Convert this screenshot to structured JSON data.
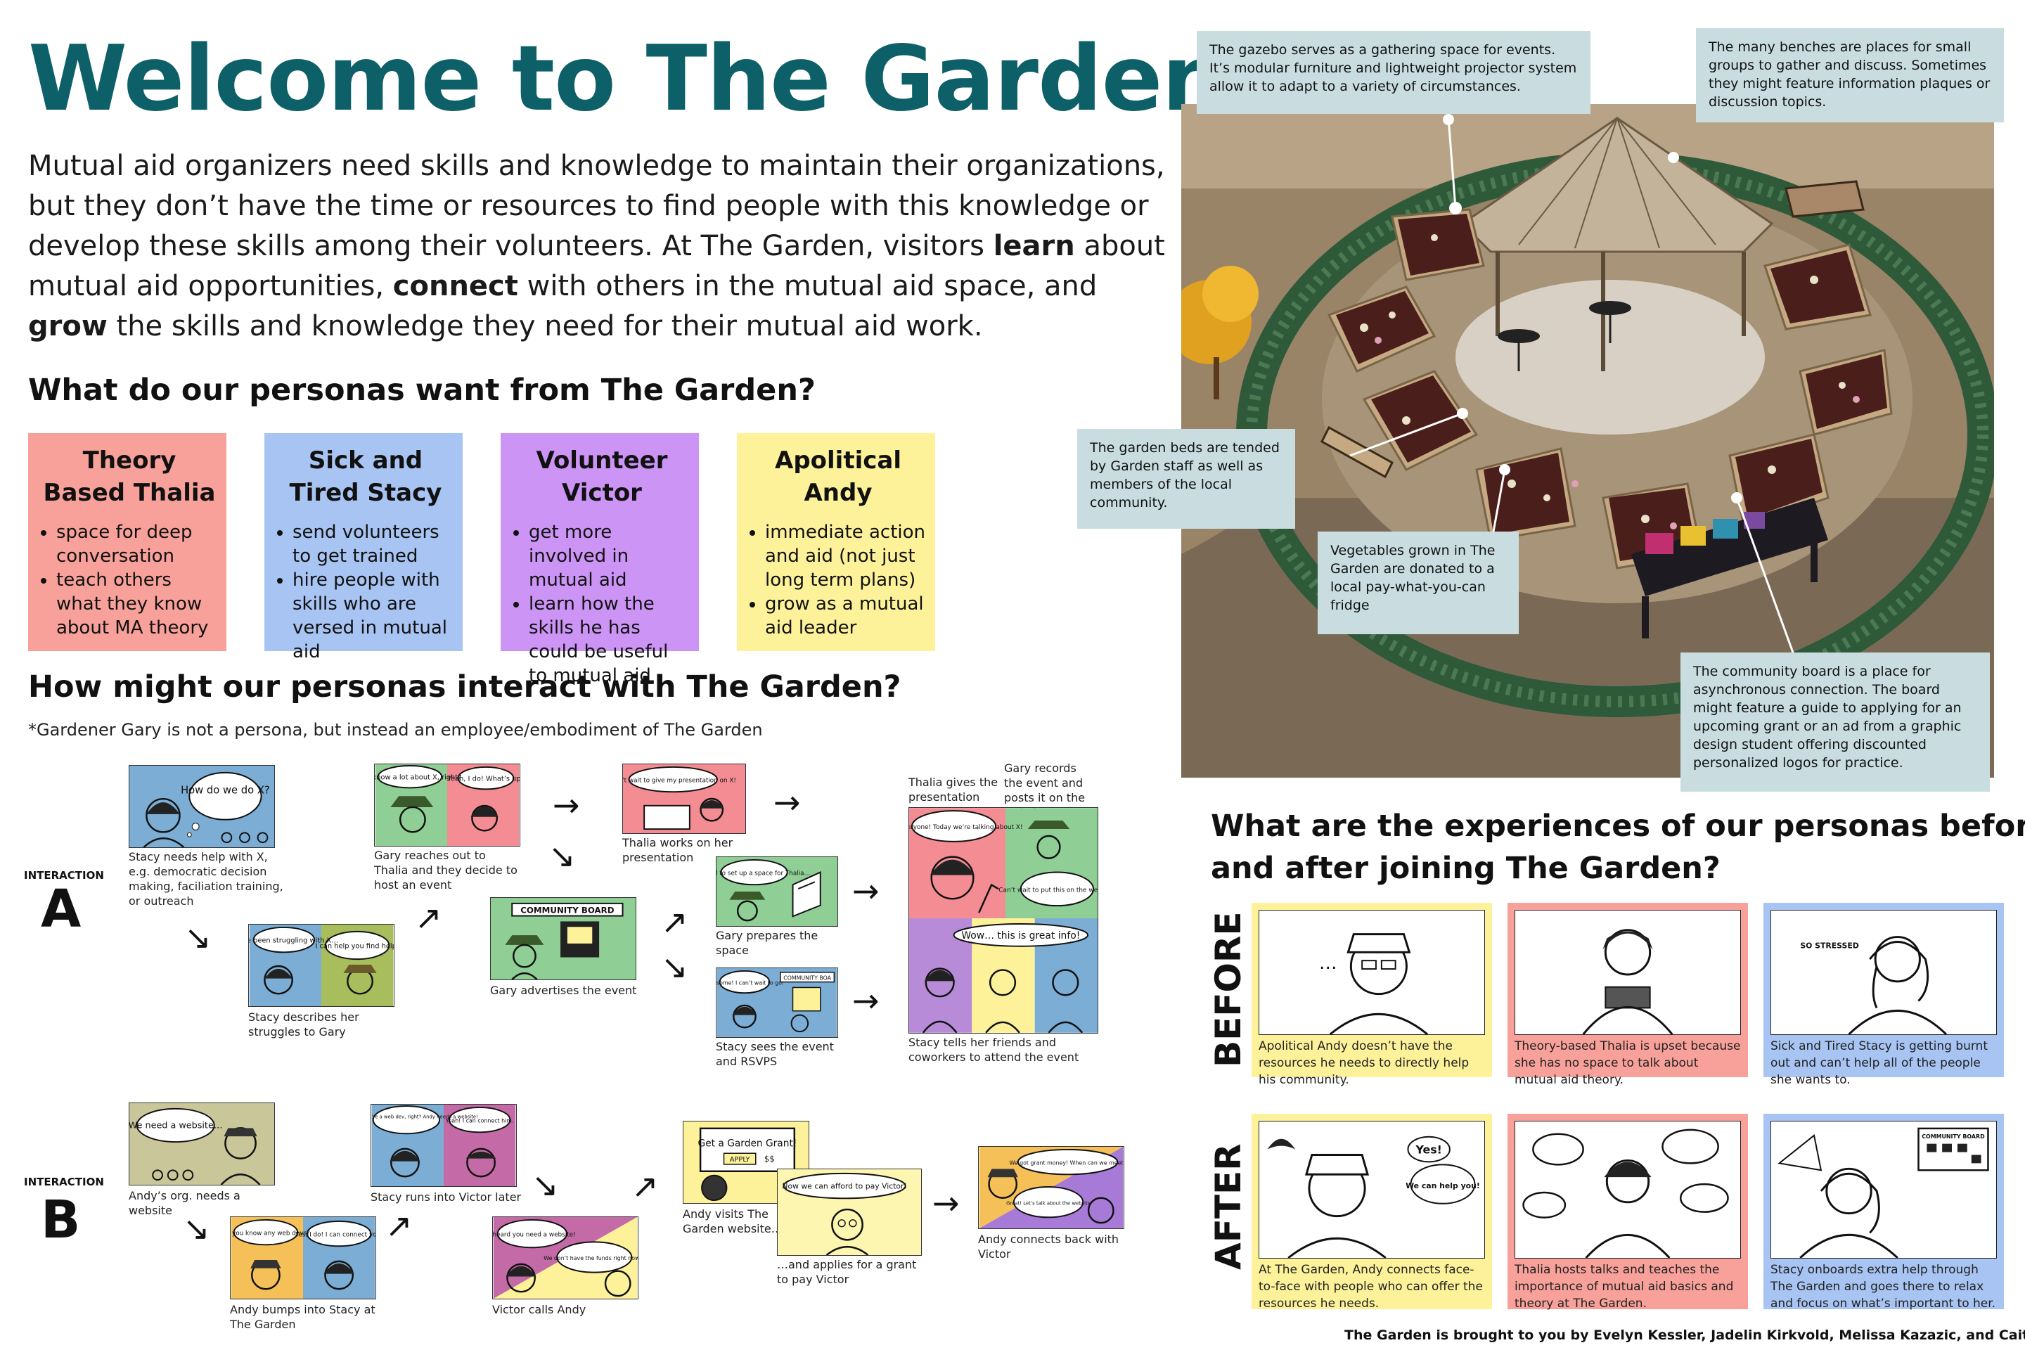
{
  "header": {
    "title": "Welcome to The Garden",
    "intro": {
      "p1": "Mutual aid organizers need skills and knowledge to maintain their organizations, but they don’t have the time or resources to find people with this knowledge or develop these skills among their volunteers. At The Garden, visitors ",
      "learn": "learn",
      "p2": " about mutual aid opportunities, ",
      "connect": "connect",
      "p3": " with others in the mutual aid space, and ",
      "grow": "grow",
      "p4": " the skills and knowledge they need for their mutual aid work."
    }
  },
  "personas_section": {
    "heading": "What do our personas want from The Garden?",
    "personas": [
      {
        "name": "Theory Based Thalia",
        "color": "#f8a19a",
        "points": [
          "space for deep conversation",
          "teach others what they know about MA theory"
        ]
      },
      {
        "name": "Sick and Tired Stacy",
        "color": "#a7c4f2",
        "points": [
          "send volunteers to get trained",
          "hire people with skills who are versed in mutual aid"
        ]
      },
      {
        "name": "Volunteer Victor",
        "color": "#cc94f5",
        "points": [
          "get more involved in mutual aid",
          "learn how the skills he has could be useful to mutual aid"
        ]
      },
      {
        "name": "Apolitical Andy",
        "color": "#fdf29a",
        "points": [
          "immediate action and aid (not just long term plans)",
          "grow as a mutual aid leader"
        ]
      }
    ]
  },
  "interact_section": {
    "heading": "How might our personas interact with The Garden?",
    "note": "*Gardener Gary is not a persona, but instead an employee/embodiment of The Garden",
    "interaction_a": {
      "label": "INTERACTION",
      "letter": "A",
      "captions": {
        "a1": "Stacy needs help with X, e.g. democratic decision making, faciliation training, or outreach",
        "a2": "Stacy describes her struggles to Gary",
        "a3": "Gary reaches out to Thalia and they decide to host an event",
        "a4": "Gary advertises the event",
        "a5": "Thalia works on her presentation",
        "a6": "Gary prepares the space",
        "a7": "Stacy sees the event and RSVPS",
        "a8a": "Thalia gives the presentation",
        "a8b": "Gary records the event and posts it on the website",
        "a9": "Stacy tells her friends and coworkers to attend the event"
      },
      "bubbles": {
        "a1": "How do we do X?",
        "a2l": "We’ve been struggling with X…",
        "a2r": "I can help you find help!",
        "a3l": "You know a lot about X, right?",
        "a3r": "Yeah, I do! What’s up?",
        "a4": "COMMUNITY BOARD",
        "a5": "Can’t wait to give my presentation on X!",
        "a6": "I need to set up a space for Thalia…",
        "a7l": "Awesome! I can’t wait to go!",
        "a7r": "COMMUNITY BOA",
        "a8": "Hey everyone! Today we’re talking about X!",
        "a8r": "Can’t wait to put this on the website!",
        "a9": "Wow… this is great info!"
      }
    },
    "interaction_b": {
      "label": "INTERACTION",
      "letter": "B",
      "captions": {
        "b1": "Andy’s org. needs a website",
        "b2": "Andy bumps into Stacy at The Garden",
        "b3": "Stacy runs into Victor later",
        "b4": "Victor calls Andy",
        "b5": "Andy visits The Garden website…",
        "b6": "…and applies for a grant to pay Victor",
        "b7": "Andy connects back with Victor"
      },
      "bubbles": {
        "b1": "We need a website…",
        "b2l": "Do you know any web devs?",
        "b2r": "Yes, I do! I can connect you.",
        "b3l": "Hey Victor! You’re a web dev, right? Andy needs a website!",
        "b3r": "Yeah! I can connect him.",
        "b4l": "I heard you need a website!",
        "b4r": "We don’t have the funds right now…",
        "b5a": "Get a Garden Grant!",
        "b5b": "APPLY",
        "b5c": "$$",
        "b6": "Now we can afford to pay Victor!",
        "b7l": "We got grant money! When can we meet?",
        "b7r": "Great! Let’s talk about the website"
      }
    }
  },
  "model_photo": {
    "callouts": {
      "gazebo": "The gazebo serves as a gathering space for events. It’s modular furniture and lightweight projector system allow it to adapt to a variety of circumstances.",
      "benches": "The many benches are places for small groups to gather and discuss. Sometimes they might feature information plaques or discussion topics.",
      "beds": "The garden beds are tended by Garden staff as well as members of the local community.",
      "vegetables": "Vegetables grown in The Garden are donated to a local pay-what-you-can fridge",
      "board": "The community board is a place for asynchronous connection. The board might feature a guide to applying for an upcoming grant or an ad from a graphic design student offering discounted personalized logos for practice."
    }
  },
  "experience_section": {
    "heading_line1": "What are the experiences of our personas before",
    "heading_line2": "and after joining The Garden?",
    "before_label": "BEFORE",
    "after_label": "AFTER",
    "before": [
      {
        "text": "Apolitical Andy doesn’t have the resources he needs to directly help his community.",
        "color": "#fdf29a"
      },
      {
        "text": "Theory-based Thalia is upset because she has no space to talk about mutual aid theory.",
        "color": "#f8a19a",
        "drawn": ""
      },
      {
        "text": "Sick and Tired Stacy is getting burnt out and can’t help all of the people she wants to.",
        "color": "#a7c4f2",
        "drawn": "SO STRESSED"
      }
    ],
    "after": [
      {
        "text": "At The Garden, Andy connects face-to-face with people who can offer the resources he needs.",
        "color": "#fdf29a",
        "drawn1": "Yes!",
        "drawn2": "We can help you!"
      },
      {
        "text": "Thalia hosts talks and teaches the importance of mutual aid basics and theory at The Garden.",
        "color": "#f8a19a"
      },
      {
        "text": "Stacy onboards extra help through The Garden and goes there to relax and focus on what’s important to her.",
        "color": "#a7c4f2",
        "drawn": "COMMUNITY BOARD"
      }
    ]
  },
  "credits": "The Garden is brought to you by Evelyn Kessler, Jadelin Kirkvold, Melissa Kazazic, and Caitlin Kantor",
  "colors": {
    "title": "#0d6068",
    "callout": "#c9dde0",
    "pink": "#f8a19a",
    "blue": "#a7c4f2",
    "purple": "#cc94f5",
    "yellow": "#fdf29a",
    "green": "#8fcf95"
  }
}
